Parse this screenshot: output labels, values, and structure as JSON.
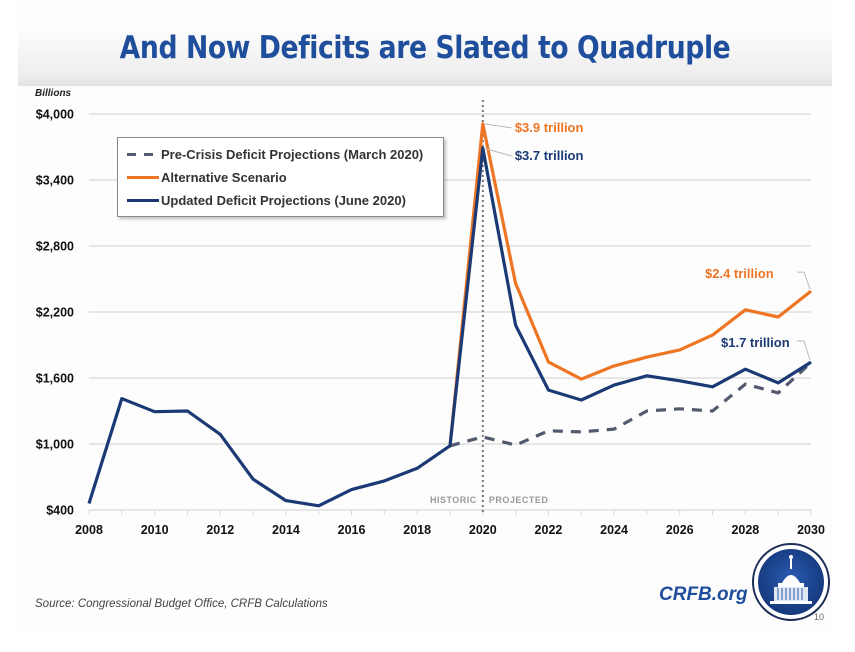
{
  "slide": {
    "title": "And Now Deficits are Slated to Quadruple",
    "units_label": "Billions",
    "source": "Source: Congressional Budget Office, CRFB Calculations",
    "brand": "CRFB.org",
    "page_number": "10",
    "logo_icon": "capitol-dome-icon"
  },
  "colors": {
    "title": "#1f4e9c",
    "updated": "#1b3a75",
    "alternative": "#ee7523",
    "pre_crisis": "#525a6e",
    "grid": "#d9d9d9",
    "divider": "#777777"
  },
  "chart_data": {
    "type": "line",
    "title": "And Now Deficits are Slated to Quadruple",
    "xlabel": "",
    "ylabel": "Billions",
    "xlim": [
      2008,
      2030
    ],
    "ylim": [
      400,
      4000
    ],
    "x_ticks": [
      2008,
      2009,
      2010,
      2011,
      2012,
      2013,
      2014,
      2015,
      2016,
      2017,
      2018,
      2019,
      2020,
      2021,
      2022,
      2023,
      2024,
      2025,
      2026,
      2027,
      2028,
      2029,
      2030
    ],
    "x_tick_labels": [
      "2008",
      "2010",
      "2012",
      "2014",
      "2016",
      "2018",
      "2020",
      "2022",
      "2024",
      "2026",
      "2028",
      "2030"
    ],
    "x_tick_label_values": [
      2008,
      2010,
      2012,
      2014,
      2016,
      2018,
      2020,
      2022,
      2024,
      2026,
      2028,
      2030
    ],
    "y_ticks": [
      400,
      1000,
      1600,
      2200,
      2800,
      3400,
      4000
    ],
    "y_tick_labels": [
      "$400",
      "$1,000",
      "$1,600",
      "$2,200",
      "$2,800",
      "$3,400",
      "$4,000"
    ],
    "grid": "horizontal",
    "legend_position": "top-left",
    "divider": {
      "x": 2020,
      "left_label": "HISTORIC",
      "right_label": "PROJECTED"
    },
    "series": [
      {
        "key": "pre_crisis",
        "name": "Pre-Crisis Deficit Projections (March 2020)",
        "style": "dashed",
        "x": [
          2019,
          2020,
          2021,
          2022,
          2023,
          2024,
          2025,
          2026,
          2027,
          2028,
          2029,
          2030
        ],
        "values": [
          984,
          1065,
          990,
          1120,
          1110,
          1135,
          1300,
          1320,
          1300,
          1545,
          1465,
          1740
        ]
      },
      {
        "key": "alternative",
        "name": "Alternative Scenario",
        "style": "solid",
        "x": [
          2019,
          2020,
          2021,
          2022,
          2023,
          2024,
          2025,
          2026,
          2027,
          2028,
          2029,
          2030
        ],
        "values": [
          984,
          3910,
          2460,
          1745,
          1590,
          1710,
          1790,
          1855,
          1990,
          2220,
          2155,
          2390
        ]
      },
      {
        "key": "updated",
        "name": "Updated Deficit Projections (June 2020)",
        "style": "solid",
        "x": [
          2008,
          2009,
          2010,
          2011,
          2012,
          2013,
          2014,
          2015,
          2016,
          2017,
          2018,
          2019,
          2020,
          2021,
          2022,
          2023,
          2024,
          2025,
          2026,
          2027,
          2028,
          2029,
          2030
        ],
        "values": [
          459,
          1413,
          1294,
          1300,
          1087,
          680,
          485,
          438,
          585,
          665,
          779,
          984,
          3690,
          2080,
          1490,
          1400,
          1535,
          1620,
          1575,
          1520,
          1680,
          1555,
          1745
        ]
      }
    ],
    "annotations": [
      {
        "text": "$3.9 trillion",
        "series": "alternative",
        "x": 2020,
        "value": 3910
      },
      {
        "text": "$3.7 trillion",
        "series": "updated",
        "x": 2020,
        "value": 3690
      },
      {
        "text": "$2.4 trillion",
        "series": "alternative",
        "x": 2030,
        "value": 2390
      },
      {
        "text": "$1.7 trillion",
        "series": "updated",
        "x": 2030,
        "value": 1745
      }
    ]
  }
}
